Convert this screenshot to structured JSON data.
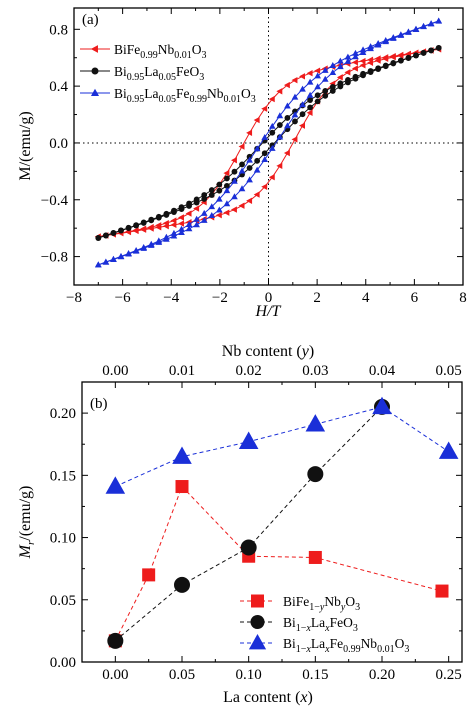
{
  "colors": {
    "red": "#ee1c1c",
    "black": "#111111",
    "blue": "#1a2fd8"
  },
  "chart_data": [
    {
      "type": "line",
      "panel_label": "(a)",
      "xlabel": "H/T",
      "ylabel": "M/(emu/g)",
      "xlim": [
        -8,
        8
      ],
      "ylim": [
        -1.0,
        0.95
      ],
      "x_ticks": [
        -8,
        -6,
        -4,
        -2,
        0,
        2,
        4,
        6,
        8
      ],
      "y_ticks": [
        -0.8,
        -0.4,
        0.0,
        0.4,
        0.8
      ],
      "x_tick_labels": [
        "−8",
        "−6",
        "−4",
        "−2",
        "0",
        "2",
        "4",
        "6",
        "8"
      ],
      "y_tick_labels": [
        "−0.8",
        "−0.4",
        "0.0",
        "0.4",
        "0.8"
      ],
      "legend_position": "top-left",
      "series": [
        {
          "name": "BiFe0.99Nb0.01O3",
          "legend_parts": [
            [
              "BiFe",
              "n"
            ],
            [
              "0.99",
              "sub"
            ],
            [
              "Nb",
              "n"
            ],
            [
              "0.01",
              "sub"
            ],
            [
              "O",
              "n"
            ],
            [
              "3",
              "sub"
            ]
          ],
          "color": "red",
          "marker": "triangle-left",
          "Ms": 0.66,
          "Mr": 0.17,
          "Hc": 1.1,
          "chi": 0.026,
          "k": 0.6
        },
        {
          "name": "Bi0.95La0.05FeO3",
          "legend_parts": [
            [
              "Bi",
              "n"
            ],
            [
              "0.95",
              "sub"
            ],
            [
              "La",
              "n"
            ],
            [
              "0.05",
              "sub"
            ],
            [
              "FeO",
              "n"
            ],
            [
              "3",
              "sub"
            ]
          ],
          "color": "black",
          "marker": "circle",
          "Ms": 0.67,
          "Mr": 0.06,
          "Hc": 0.35,
          "chi": 0.055,
          "k": 0.45
        },
        {
          "name": "Bi0.95La0.05Fe0.99Nb0.01O3",
          "legend_parts": [
            [
              "Bi",
              "n"
            ],
            [
              "0.95",
              "sub"
            ],
            [
              "La",
              "n"
            ],
            [
              "0.05",
              "sub"
            ],
            [
              "Fe",
              "n"
            ],
            [
              "0.99",
              "sub"
            ],
            [
              "Nb",
              "n"
            ],
            [
              "0.01",
              "sub"
            ],
            [
              "O",
              "n"
            ],
            [
              "3",
              "sub"
            ]
          ],
          "color": "blue",
          "marker": "triangle-up",
          "Ms": 0.86,
          "Mr": 0.2,
          "Hc": 0.4,
          "chi": 0.06,
          "k": 0.45
        }
      ]
    },
    {
      "type": "line",
      "panel_label": "(b)",
      "xlabel": "La content (x)",
      "x2label": "Nb content (y)",
      "ylabel": "Mr/(emu/g)",
      "xlim": [
        -0.025,
        0.26
      ],
      "ylim": [
        0.0,
        0.225
      ],
      "x_ticks": [
        0.0,
        0.05,
        0.1,
        0.15,
        0.2,
        0.25
      ],
      "x_tick_labels": [
        "0.00",
        "0.05",
        "0.10",
        "0.15",
        "0.20",
        "0.25"
      ],
      "y_ticks": [
        0.0,
        0.05,
        0.1,
        0.15,
        0.2
      ],
      "y_tick_labels": [
        "0.00",
        "0.05",
        "0.10",
        "0.15",
        "0.20"
      ],
      "top_x_tick_labels": [
        "0.00",
        "0.01",
        "0.02",
        "0.03",
        "0.04",
        "0.05"
      ],
      "legend_position": "bottom-right",
      "series": [
        {
          "name": "BiFe1−yNbyO3",
          "legend_parts": [
            [
              "BiFe",
              "n"
            ],
            [
              "1−",
              "sub"
            ],
            [
              "y",
              "subi"
            ],
            [
              "Nb",
              "n"
            ],
            [
              "y",
              "subi"
            ],
            [
              "O",
              "n"
            ],
            [
              "3",
              "sub"
            ]
          ],
          "color": "red",
          "marker": "square",
          "x": [
            0.0,
            0.025,
            0.05,
            0.1,
            0.15,
            0.245
          ],
          "y": [
            0.017,
            0.07,
            0.141,
            0.085,
            0.084,
            0.057
          ]
        },
        {
          "name": "Bi1−xLaxFeO3",
          "legend_parts": [
            [
              "Bi",
              "n"
            ],
            [
              "1−",
              "sub"
            ],
            [
              "x",
              "subi"
            ],
            [
              "La",
              "n"
            ],
            [
              "x",
              "subi"
            ],
            [
              "FeO",
              "n"
            ],
            [
              "3",
              "sub"
            ]
          ],
          "color": "black",
          "marker": "circle",
          "x": [
            0.0,
            0.05,
            0.1,
            0.15,
            0.2
          ],
          "y": [
            0.017,
            0.062,
            0.092,
            0.151,
            0.205
          ]
        },
        {
          "name": "Bi1−xLaxFe0.99Nb0.01O3",
          "legend_parts": [
            [
              "Bi",
              "n"
            ],
            [
              "1−",
              "sub"
            ],
            [
              "x",
              "subi"
            ],
            [
              "La",
              "n"
            ],
            [
              "x",
              "subi"
            ],
            [
              "Fe",
              "n"
            ],
            [
              "0.99",
              "sub"
            ],
            [
              "Nb",
              "n"
            ],
            [
              "0.01",
              "sub"
            ],
            [
              "O",
              "n"
            ],
            [
              "3",
              "sub"
            ]
          ],
          "color": "blue",
          "marker": "triangle-up",
          "x": [
            0.0,
            0.05,
            0.1,
            0.15,
            0.2,
            0.25
          ],
          "y": [
            0.141,
            0.165,
            0.177,
            0.191,
            0.205,
            0.169
          ]
        }
      ]
    }
  ]
}
